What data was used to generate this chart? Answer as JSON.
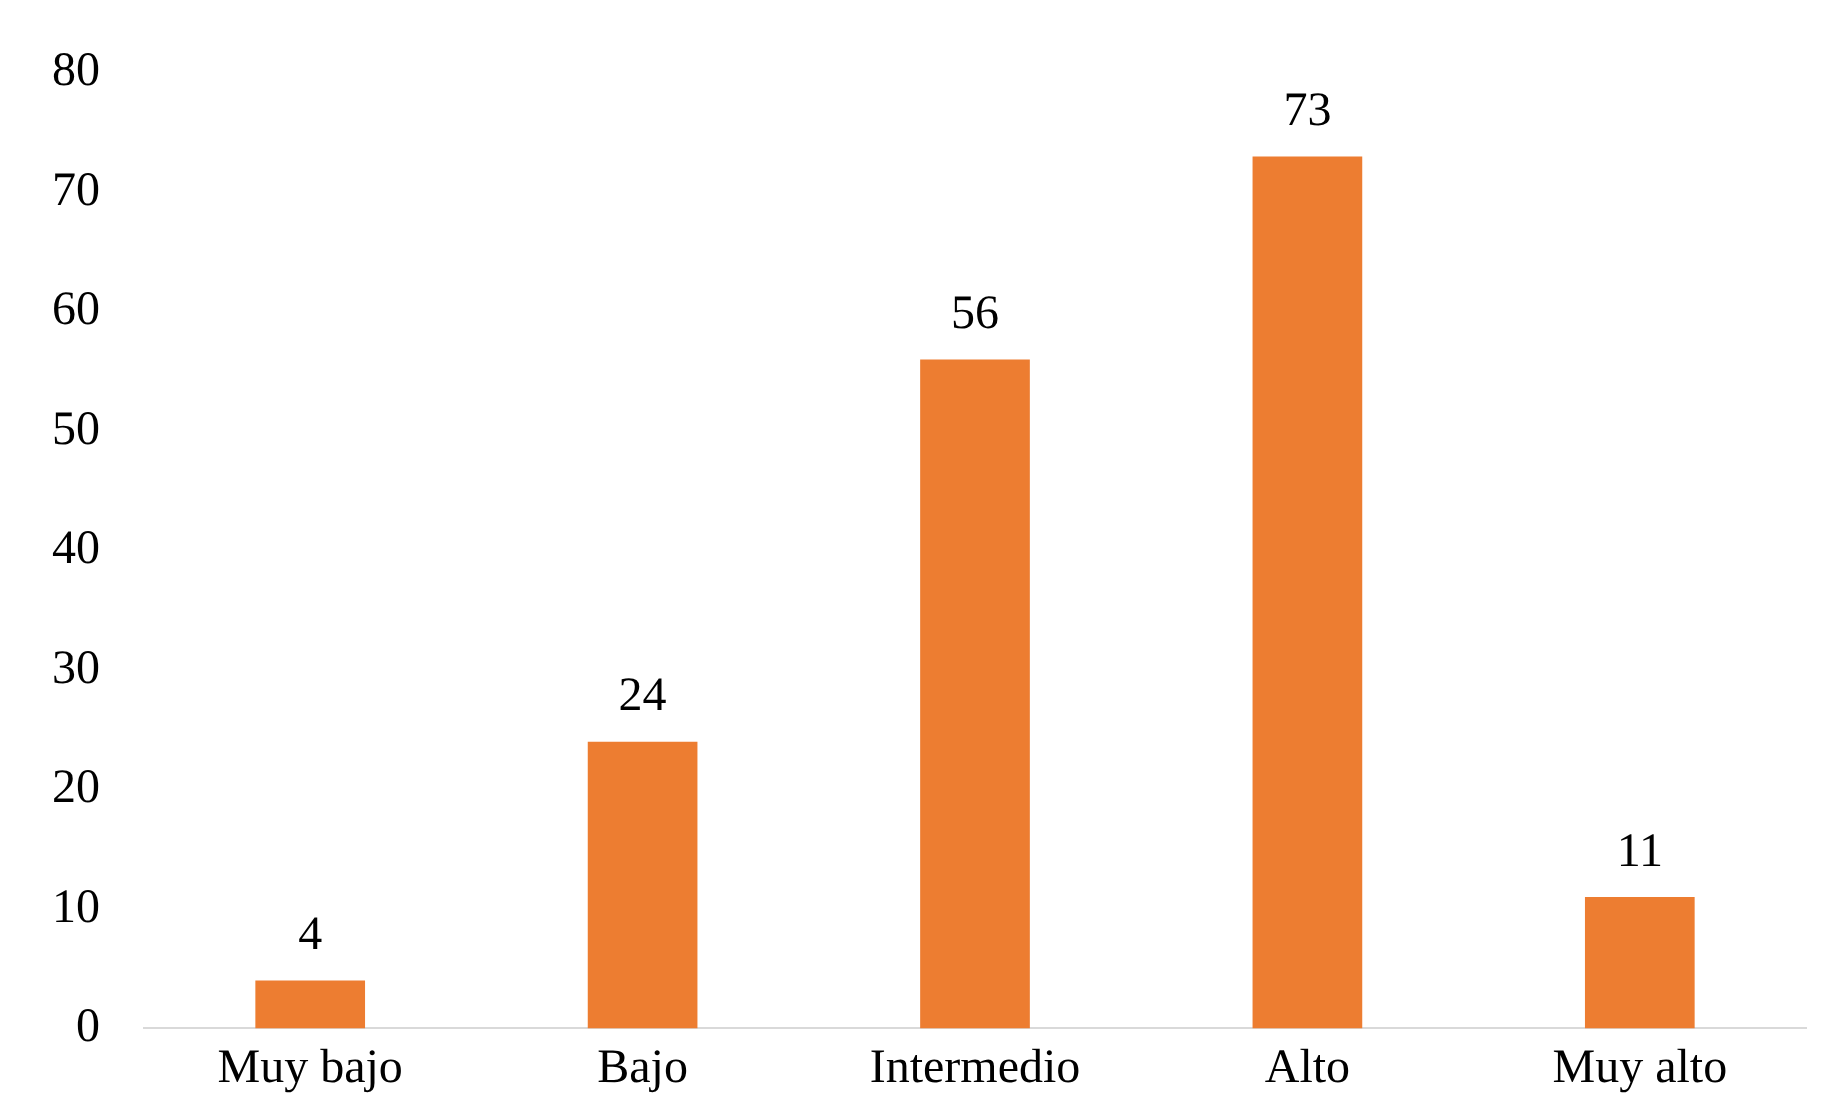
{
  "chart_data": {
    "type": "bar",
    "categories": [
      "Muy bajo",
      "Bajo",
      "Intermedio",
      "Alto",
      "Muy alto"
    ],
    "values": [
      4,
      24,
      56,
      73,
      11
    ],
    "color": "#ed7d31",
    "ylim": [
      0,
      80
    ],
    "yticks": [
      0,
      10,
      20,
      30,
      40,
      50,
      60,
      70,
      80
    ],
    "grid": false,
    "legend": false,
    "data_labels": true
  }
}
